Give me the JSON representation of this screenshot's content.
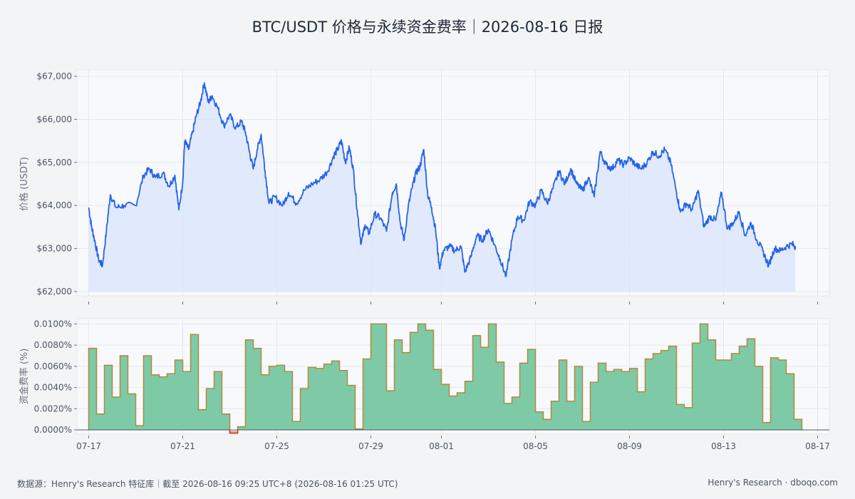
{
  "title": "BTC/USDT 价格与永续资金费率｜2026-08-16 日报",
  "footer": {
    "source": "数据源：Henry's Research 特征库｜截至 2026-08-16 09:25 UTC+8 (2026-08-16 01:25 UTC)",
    "brand": "Henry's Research · dboqo.com"
  },
  "colors": {
    "price_line": "#2563eb",
    "price_fill": "#dbe6fb",
    "funding_fill": "#7ecaa7",
    "funding_line": "#b08a3a",
    "negative_line": "#dc2626",
    "panel_bg": "#f8f9fc",
    "grid": "#e5e7eb"
  },
  "chart_data": [
    {
      "type": "line",
      "panel": "price",
      "ylabel": "价格 (USDT)",
      "ylim": [
        61900,
        67150
      ],
      "yticks": [
        62000,
        63000,
        64000,
        65000,
        66000,
        67000
      ],
      "ytick_labels": [
        "$62,000",
        "$63,000",
        "$64,000",
        "$65,000",
        "$66,000",
        "$67,000"
      ],
      "grid": true,
      "x_range": [
        "2026-07-16T12:00",
        "2026-08-17T12:00"
      ],
      "series": [
        {
          "points": [
            [
              "2026-07-17T00:00",
              63950
            ],
            [
              "2026-07-17T03:00",
              63500
            ],
            [
              "2026-07-17T06:00",
              63200
            ],
            [
              "2026-07-17T10:00",
              62750
            ],
            [
              "2026-07-17T14:00",
              62600
            ],
            [
              "2026-07-17T18:00",
              63400
            ],
            [
              "2026-07-17T22:00",
              64250
            ],
            [
              "2026-07-18T04:00",
              63950
            ],
            [
              "2026-07-18T12:00",
              64000
            ],
            [
              "2026-07-19T00:00",
              64000
            ],
            [
              "2026-07-19T08:00",
              64700
            ],
            [
              "2026-07-19T14:00",
              64850
            ],
            [
              "2026-07-19T20:00",
              64650
            ],
            [
              "2026-07-20T04:00",
              64750
            ],
            [
              "2026-07-20T10:00",
              64450
            ],
            [
              "2026-07-20T16:00",
              64700
            ],
            [
              "2026-07-20T20:00",
              63900
            ],
            [
              "2026-07-21T00:00",
              64550
            ],
            [
              "2026-07-21T02:00",
              65500
            ],
            [
              "2026-07-21T06:00",
              65300
            ],
            [
              "2026-07-21T10:00",
              65700
            ],
            [
              "2026-07-21T14:00",
              66100
            ],
            [
              "2026-07-21T18:00",
              66400
            ],
            [
              "2026-07-21T22:00",
              66850
            ],
            [
              "2026-07-22T02:00",
              66400
            ],
            [
              "2026-07-22T06:00",
              66550
            ],
            [
              "2026-07-22T12:00",
              66250
            ],
            [
              "2026-07-22T18:00",
              65850
            ],
            [
              "2026-07-23T00:00",
              66100
            ],
            [
              "2026-07-23T06:00",
              65800
            ],
            [
              "2026-07-23T12:00",
              65950
            ],
            [
              "2026-07-23T16:00",
              65700
            ],
            [
              "2026-07-23T20:00",
              65250
            ],
            [
              "2026-07-24T00:00",
              64850
            ],
            [
              "2026-07-24T04:00",
              65300
            ],
            [
              "2026-07-24T08:00",
              65650
            ],
            [
              "2026-07-24T12:00",
              64800
            ],
            [
              "2026-07-24T16:00",
              64050
            ],
            [
              "2026-07-24T22:00",
              64200
            ],
            [
              "2026-07-25T06:00",
              64000
            ],
            [
              "2026-07-25T12:00",
              64300
            ],
            [
              "2026-07-25T20:00",
              64050
            ],
            [
              "2026-07-26T04:00",
              64350
            ],
            [
              "2026-07-26T12:00",
              64500
            ],
            [
              "2026-07-26T20:00",
              64600
            ],
            [
              "2026-07-27T04:00",
              64800
            ],
            [
              "2026-07-27T10:00",
              65150
            ],
            [
              "2026-07-27T14:00",
              65300
            ],
            [
              "2026-07-27T18:00",
              65500
            ],
            [
              "2026-07-27T22:00",
              65000
            ],
            [
              "2026-07-28T02:00",
              65350
            ],
            [
              "2026-07-28T06:00",
              64850
            ],
            [
              "2026-07-28T10:00",
              63900
            ],
            [
              "2026-07-28T14:00",
              63100
            ],
            [
              "2026-07-28T18:00",
              63550
            ],
            [
              "2026-07-28T22:00",
              63350
            ],
            [
              "2026-07-29T04:00",
              63800
            ],
            [
              "2026-07-29T10:00",
              63700
            ],
            [
              "2026-07-29T16:00",
              63400
            ],
            [
              "2026-07-29T22:00",
              64300
            ],
            [
              "2026-07-30T02:00",
              64500
            ],
            [
              "2026-07-30T06:00",
              63600
            ],
            [
              "2026-07-30T10:00",
              63200
            ],
            [
              "2026-07-30T14:00",
              63950
            ],
            [
              "2026-07-30T18:00",
              64400
            ],
            [
              "2026-07-30T22:00",
              64750
            ],
            [
              "2026-07-31T02:00",
              64900
            ],
            [
              "2026-07-31T06:00",
              65300
            ],
            [
              "2026-07-31T10:00",
              64250
            ],
            [
              "2026-07-31T14:00",
              63950
            ],
            [
              "2026-07-31T18:00",
              63450
            ],
            [
              "2026-07-31T22:00",
              62550
            ],
            [
              "2026-08-01T02:00",
              62950
            ],
            [
              "2026-08-01T08:00",
              63050
            ],
            [
              "2026-08-01T14:00",
              62950
            ],
            [
              "2026-08-01T20:00",
              63050
            ],
            [
              "2026-08-02T00:00",
              62450
            ],
            [
              "2026-08-02T06:00",
              62800
            ],
            [
              "2026-08-02T12:00",
              63300
            ],
            [
              "2026-08-02T18:00",
              63200
            ],
            [
              "2026-08-03T00:00",
              63450
            ],
            [
              "2026-08-03T06:00",
              63100
            ],
            [
              "2026-08-03T12:00",
              62750
            ],
            [
              "2026-08-03T18:00",
              62350
            ],
            [
              "2026-08-04T00:00",
              63200
            ],
            [
              "2026-08-04T06:00",
              63750
            ],
            [
              "2026-08-04T12:00",
              63650
            ],
            [
              "2026-08-04T18:00",
              64100
            ],
            [
              "2026-08-05T00:00",
              64000
            ],
            [
              "2026-08-05T06:00",
              64350
            ],
            [
              "2026-08-05T12:00",
              64050
            ],
            [
              "2026-08-05T18:00",
              64400
            ],
            [
              "2026-08-06T00:00",
              64800
            ],
            [
              "2026-08-06T06:00",
              64500
            ],
            [
              "2026-08-06T12:00",
              64850
            ],
            [
              "2026-08-06T18:00",
              64500
            ],
            [
              "2026-08-07T00:00",
              64350
            ],
            [
              "2026-08-07T06:00",
              64650
            ],
            [
              "2026-08-07T12:00",
              64200
            ],
            [
              "2026-08-07T18:00",
              65250
            ],
            [
              "2026-08-08T00:00",
              64950
            ],
            [
              "2026-08-08T06:00",
              64850
            ],
            [
              "2026-08-08T12:00",
              65050
            ],
            [
              "2026-08-08T18:00",
              64950
            ],
            [
              "2026-08-09T00:00",
              65100
            ],
            [
              "2026-08-09T06:00",
              64950
            ],
            [
              "2026-08-09T12:00",
              64850
            ],
            [
              "2026-08-09T18:00",
              65000
            ],
            [
              "2026-08-10T00:00",
              65250
            ],
            [
              "2026-08-10T06:00",
              65150
            ],
            [
              "2026-08-10T12:00",
              65300
            ],
            [
              "2026-08-10T18:00",
              65000
            ],
            [
              "2026-08-11T00:00",
              64300
            ],
            [
              "2026-08-11T04:00",
              63850
            ],
            [
              "2026-08-11T10:00",
              64050
            ],
            [
              "2026-08-11T16:00",
              63900
            ],
            [
              "2026-08-11T22:00",
              64350
            ],
            [
              "2026-08-12T04:00",
              63500
            ],
            [
              "2026-08-12T10:00",
              63750
            ],
            [
              "2026-08-12T16:00",
              63650
            ],
            [
              "2026-08-12T22:00",
              64300
            ],
            [
              "2026-08-13T04:00",
              63450
            ],
            [
              "2026-08-13T10:00",
              63600
            ],
            [
              "2026-08-13T16:00",
              63850
            ],
            [
              "2026-08-13T22:00",
              63300
            ],
            [
              "2026-08-14T04:00",
              63600
            ],
            [
              "2026-08-14T10:00",
              63200
            ],
            [
              "2026-08-14T16:00",
              62950
            ],
            [
              "2026-08-14T22:00",
              62600
            ],
            [
              "2026-08-15T04:00",
              63000
            ],
            [
              "2026-08-15T10:00",
              62950
            ],
            [
              "2026-08-15T16:00",
              63050
            ],
            [
              "2026-08-15T22:00",
              63100
            ],
            [
              "2026-08-16T01:25",
              63050
            ]
          ]
        }
      ]
    },
    {
      "type": "step-area",
      "panel": "funding",
      "ylabel": "资金费率 (%)",
      "ylim": [
        -0.0004,
        0.0105
      ],
      "yticks": [
        0,
        0.002,
        0.004,
        0.006,
        0.008,
        0.01
      ],
      "ytick_labels": [
        "0.0000%",
        "0.0020%",
        "0.0040%",
        "0.0060%",
        "0.0080%",
        "0.0100%"
      ],
      "grid": true,
      "x_range": [
        "2026-07-16T12:00",
        "2026-08-17T12:00"
      ],
      "xticks": [
        "2026-07-17",
        "2026-07-21",
        "2026-07-25",
        "2026-07-29",
        "2026-08-01",
        "2026-08-05",
        "2026-08-09",
        "2026-08-13",
        "2026-08-17"
      ],
      "xtick_labels": [
        "07-17",
        "07-21",
        "07-25",
        "07-29",
        "08-01",
        "08-05",
        "08-09",
        "08-13",
        "08-17"
      ],
      "start": "2026-07-17T00:00",
      "interval_hours": 8,
      "values": [
        0.0077,
        0.0015,
        0.0061,
        0.0031,
        0.007,
        0.0034,
        0.0004,
        0.007,
        0.0052,
        0.005,
        0.0053,
        0.0066,
        0.0055,
        0.009,
        0.0019,
        0.0039,
        0.0055,
        0.0015,
        -0.0003,
        0.0003,
        0.0085,
        0.0077,
        0.0052,
        0.006,
        0.0061,
        0.0055,
        0.0008,
        0.0039,
        0.0059,
        0.0058,
        0.0062,
        0.0065,
        0.0056,
        0.0042,
        0.0001,
        0.0067,
        0.01,
        0.01,
        0.0037,
        0.0085,
        0.0073,
        0.0092,
        0.01,
        0.0094,
        0.0057,
        0.0043,
        0.0032,
        0.0035,
        0.0046,
        0.0089,
        0.0078,
        0.01,
        0.0064,
        0.0025,
        0.0031,
        0.0063,
        0.0076,
        0.0017,
        0.001,
        0.0027,
        0.0066,
        0.0027,
        0.006,
        0.0008,
        0.0045,
        0.0063,
        0.0055,
        0.0057,
        0.0055,
        0.0058,
        0.0036,
        0.0067,
        0.0072,
        0.0075,
        0.0079,
        0.0024,
        0.0021,
        0.0082,
        0.01,
        0.0085,
        0.0066,
        0.0066,
        0.0072,
        0.0079,
        0.0086,
        0.006,
        0.0007,
        0.0068,
        0.0066,
        0.0053,
        0.001
      ]
    }
  ]
}
